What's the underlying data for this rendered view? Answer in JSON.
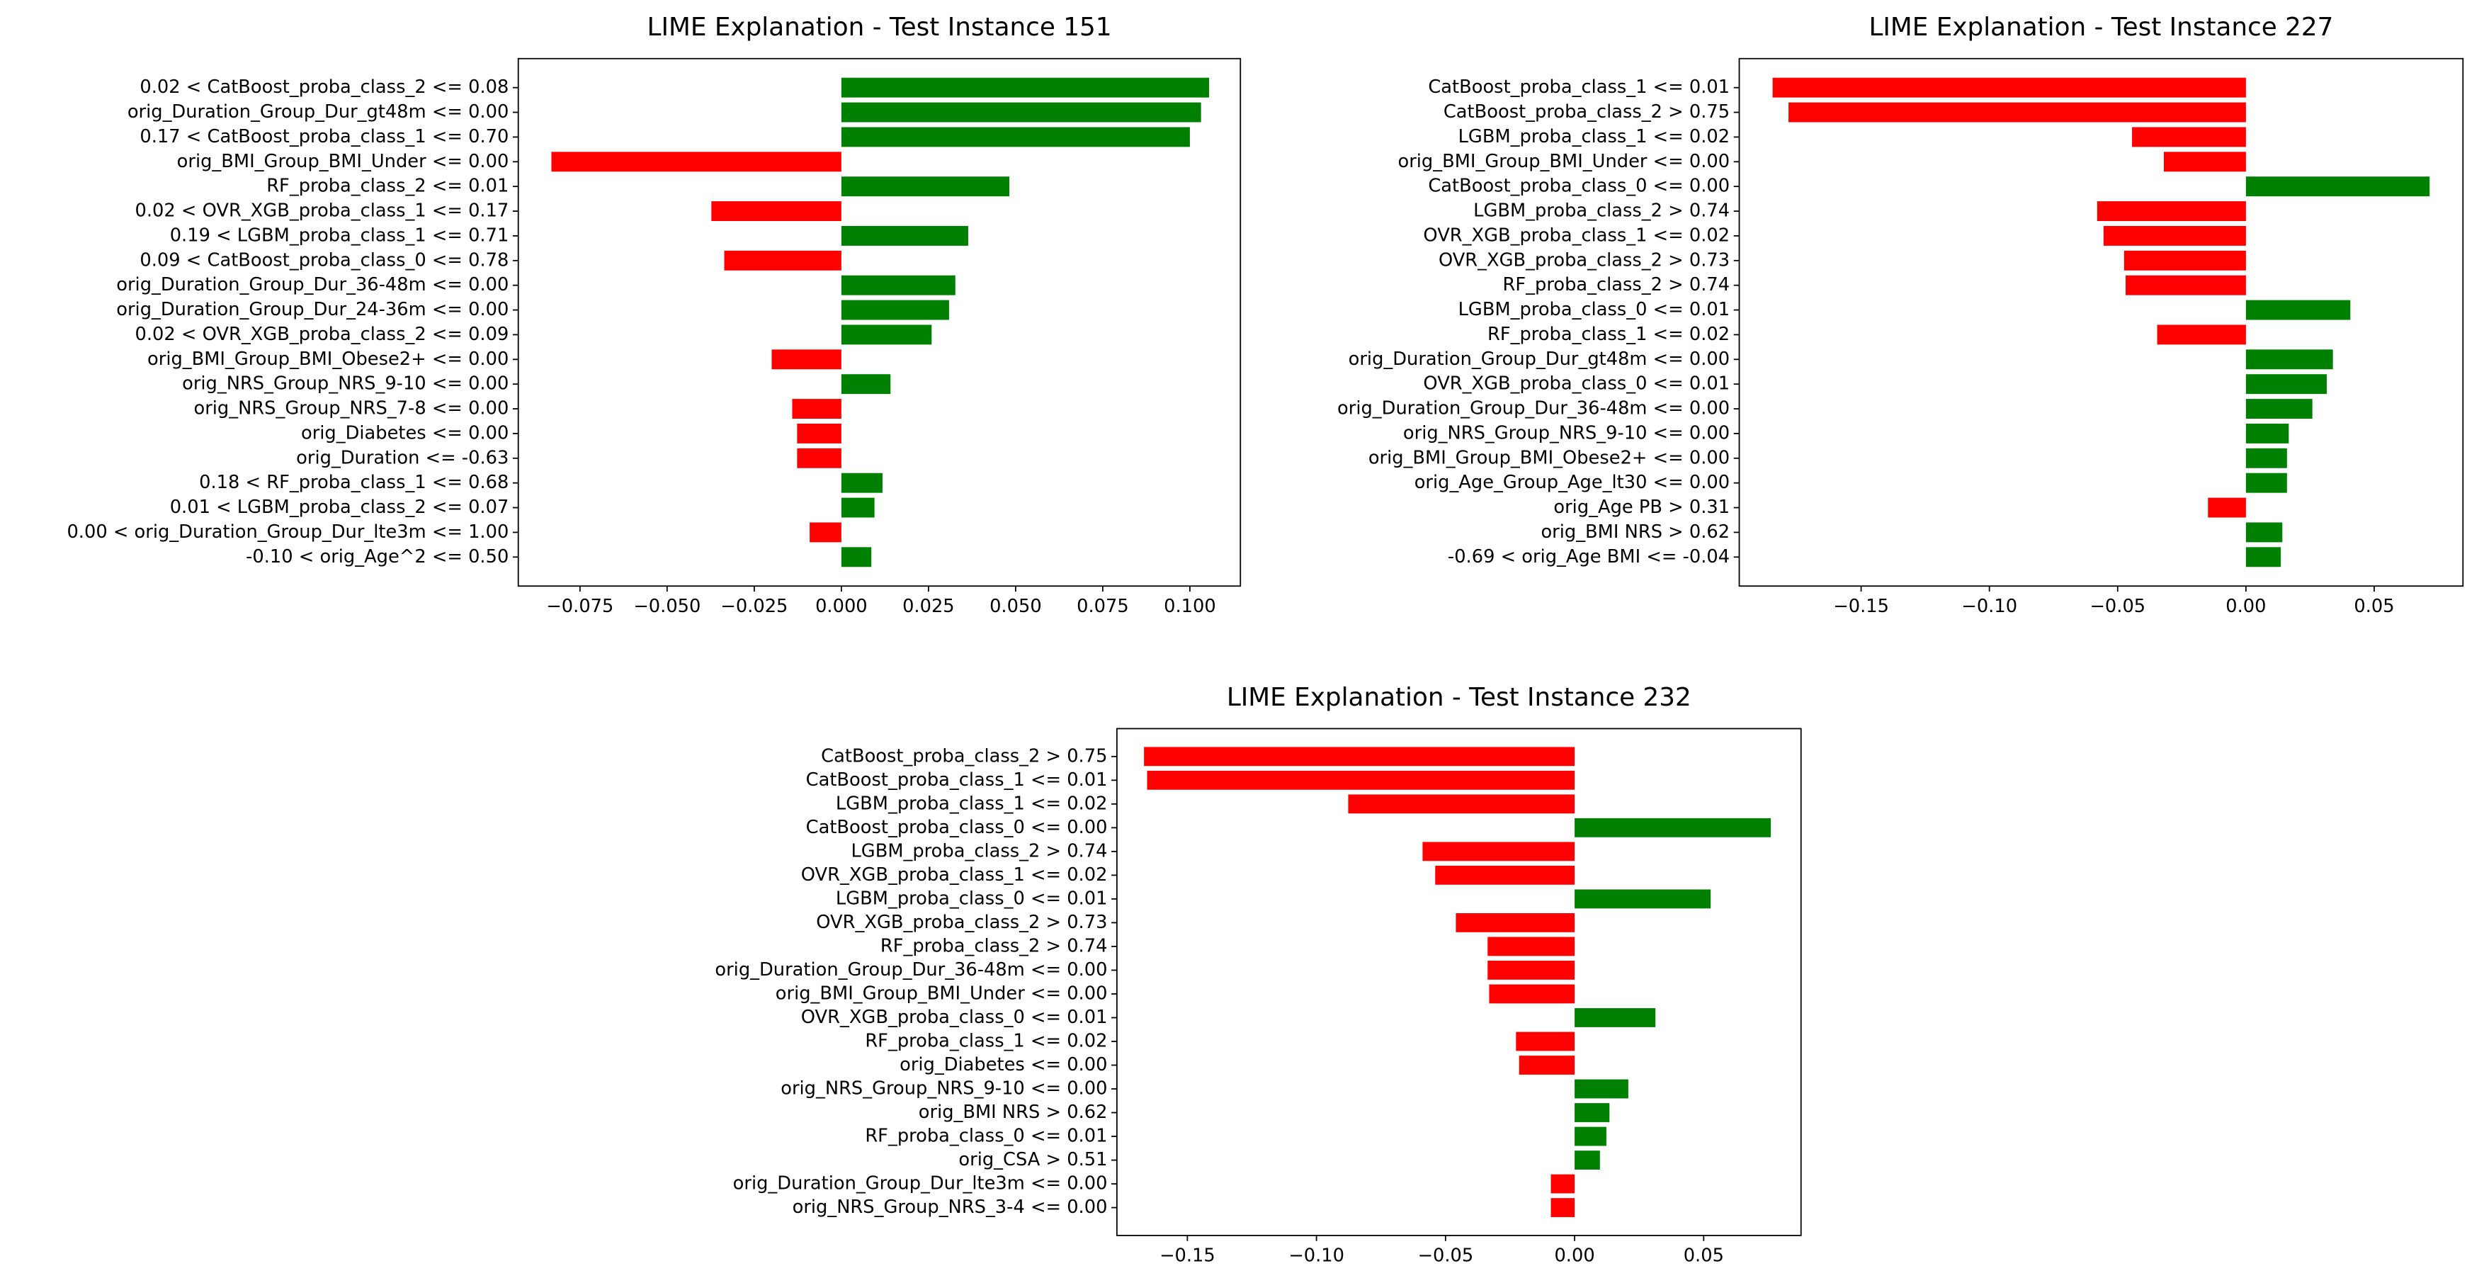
{
  "chart_data": [
    {
      "type": "barh",
      "title": "LIME Explanation - Test Instance 151",
      "categories": [
        "0.02 < CatBoost_proba_class_2 <= 0.08",
        "orig_Duration_Group_Dur_gt48m <= 0.00",
        "0.17 < CatBoost_proba_class_1 <= 0.70",
        "orig_BMI_Group_BMI_Under <= 0.00",
        "RF_proba_class_2 <= 0.01",
        "0.02 < OVR_XGB_proba_class_1 <= 0.17",
        "0.19 < LGBM_proba_class_1 <= 0.71",
        "0.09 < CatBoost_proba_class_0 <= 0.78",
        "orig_Duration_Group_Dur_36-48m <= 0.00",
        "orig_Duration_Group_Dur_24-36m <= 0.00",
        "0.02 < OVR_XGB_proba_class_2 <= 0.09",
        "orig_BMI_Group_BMI_Obese2+ <= 0.00",
        "orig_NRS_Group_NRS_9-10 <= 0.00",
        "orig_NRS_Group_NRS_7-8 <= 0.00",
        "orig_Diabetes <= 0.00",
        "orig_Duration <= -0.63",
        "0.18 < RF_proba_class_1 <= 0.68",
        "0.01 < LGBM_proba_class_2 <= 0.07",
        "0.00 < orig_Duration_Group_Dur_lte3m <= 1.00",
        "-0.10 < orig_Age^2 <= 0.50"
      ],
      "values": [
        0.1055,
        0.1032,
        0.1,
        -0.0832,
        0.0482,
        -0.0373,
        0.0364,
        -0.0336,
        0.0327,
        0.0309,
        0.0259,
        -0.02,
        0.0141,
        -0.0141,
        -0.0127,
        -0.0127,
        0.0118,
        0.0095,
        -0.0091,
        0.0086
      ],
      "positive_color": "#008000",
      "negative_color": "#ff0000",
      "xlim": [
        -0.0927,
        0.1145
      ],
      "xticks": [
        {
          "value": -0.075,
          "label": "−0.075"
        },
        {
          "value": -0.05,
          "label": "−0.050"
        },
        {
          "value": -0.025,
          "label": "−0.025"
        },
        {
          "value": 0,
          "label": "0.000"
        },
        {
          "value": 0.025,
          "label": "0.025"
        },
        {
          "value": 0.05,
          "label": "0.050"
        },
        {
          "value": 0.075,
          "label": "0.075"
        },
        {
          "value": 0.1,
          "label": "0.100"
        }
      ],
      "grid": false
    },
    {
      "type": "barh",
      "title": "LIME Explanation - Test Instance 227",
      "categories": [
        "CatBoost_proba_class_1 <= 0.01",
        "CatBoost_proba_class_2 > 0.75",
        "LGBM_proba_class_1 <= 0.02",
        "orig_BMI_Group_BMI_Under <= 0.00",
        "CatBoost_proba_class_0 <= 0.00",
        "LGBM_proba_class_2 > 0.74",
        "OVR_XGB_proba_class_1 <= 0.02",
        "OVR_XGB_proba_class_2 > 0.73",
        "RF_proba_class_2 > 0.74",
        "LGBM_proba_class_0 <= 0.01",
        "RF_proba_class_1 <= 0.02",
        "orig_Duration_Group_Dur_gt48m <= 0.00",
        "OVR_XGB_proba_class_0 <= 0.01",
        "orig_Duration_Group_Dur_36-48m <= 0.00",
        "orig_NRS_Group_NRS_9-10 <= 0.00",
        "orig_BMI_Group_BMI_Obese2+ <= 0.00",
        "orig_Age_Group_Age_lt30 <= 0.00",
        "orig_Age PB > 0.31",
        "orig_BMI NRS > 0.62",
        "-0.69 < orig_Age BMI <= -0.04"
      ],
      "values": [
        -0.1845,
        -0.1783,
        -0.0444,
        -0.032,
        0.0716,
        -0.058,
        -0.0555,
        -0.0475,
        -0.0469,
        0.0407,
        -0.0346,
        0.0339,
        0.0315,
        0.0259,
        0.0167,
        0.016,
        0.016,
        -0.0148,
        0.0142,
        0.0136
      ],
      "positive_color": "#008000",
      "negative_color": "#ff0000",
      "xlim": [
        -0.1975,
        0.0846
      ],
      "xticks": [
        {
          "value": -0.15,
          "label": "−0.15"
        },
        {
          "value": -0.1,
          "label": "−0.10"
        },
        {
          "value": -0.05,
          "label": "−0.05"
        },
        {
          "value": 0,
          "label": "0.00"
        },
        {
          "value": 0.05,
          "label": "0.05"
        }
      ],
      "grid": false
    },
    {
      "type": "barh",
      "title": "LIME Explanation - Test Instance 232",
      "categories": [
        "CatBoost_proba_class_2 > 0.75",
        "CatBoost_proba_class_1 <= 0.01",
        "LGBM_proba_class_1 <= 0.02",
        "CatBoost_proba_class_0 <= 0.00",
        "LGBM_proba_class_2 > 0.74",
        "OVR_XGB_proba_class_1 <= 0.02",
        "LGBM_proba_class_0 <= 0.01",
        "OVR_XGB_proba_class_2 > 0.73",
        "RF_proba_class_2 > 0.74",
        "orig_Duration_Group_Dur_36-48m <= 0.00",
        "orig_BMI_Group_BMI_Under <= 0.00",
        "OVR_XGB_proba_class_0 <= 0.01",
        "RF_proba_class_1 <= 0.02",
        "orig_Diabetes <= 0.00",
        "orig_NRS_Group_NRS_9-10 <= 0.00",
        "orig_BMI NRS > 0.62",
        "RF_proba_class_0 <= 0.01",
        "orig_CSA > 0.51",
        "orig_Duration_Group_Dur_lte3m <= 0.00",
        "orig_NRS_Group_NRS_3-4 <= 0.00"
      ],
      "values": [
        -0.1668,
        -0.1656,
        -0.0877,
        0.076,
        -0.0589,
        -0.054,
        0.0527,
        -0.046,
        -0.0337,
        -0.0337,
        -0.0331,
        0.0313,
        -0.0227,
        -0.0215,
        0.0208,
        0.0135,
        0.0123,
        0.0098,
        -0.0092,
        -0.0092
      ],
      "positive_color": "#008000",
      "negative_color": "#ff0000",
      "xlim": [
        -0.1773,
        0.0877
      ],
      "xticks": [
        {
          "value": -0.15,
          "label": "−0.15"
        },
        {
          "value": -0.1,
          "label": "−0.10"
        },
        {
          "value": -0.05,
          "label": "−0.05"
        },
        {
          "value": 0,
          "label": "0.00"
        },
        {
          "value": 0.05,
          "label": "0.05"
        }
      ],
      "grid": false
    }
  ]
}
